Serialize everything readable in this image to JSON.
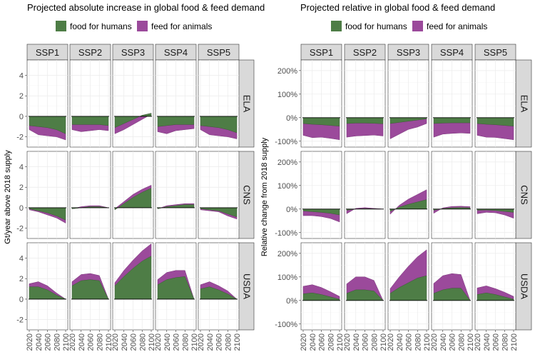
{
  "colors": {
    "food": "#4e7d46",
    "feed": "#9b4a9b"
  },
  "chart_data": [
    {
      "type": "area",
      "title": "Projected absolute increase in global food & feed demand",
      "ylabel": "Gt/year above 2018 supply",
      "columns": [
        "SSP1",
        "SSP2",
        "SSP3",
        "SSP4",
        "SSP5"
      ],
      "rows": [
        "ELA",
        "CNS",
        "USDA"
      ],
      "x": [
        2020,
        2040,
        2060,
        2080,
        2100
      ],
      "x_tick_labels": [
        "2020",
        "2040",
        "2060",
        "2080",
        "2100"
      ],
      "ylim": [
        -3,
        5.5
      ],
      "y_ticks": [
        -2,
        0,
        2,
        4
      ],
      "y_tick_labels": [
        "-2",
        "0",
        "2",
        "4"
      ],
      "legend": [
        "food for humans",
        "feed for animals"
      ],
      "panels": [
        [
          {
            "food": [
              -0.9,
              -1.0,
              -1.1,
              -1.3,
              -1.7
            ],
            "feed": [
              -0.4,
              -0.8,
              -0.8,
              -0.7,
              -0.6
            ]
          },
          {
            "food": [
              -0.8,
              -0.8,
              -0.8,
              -0.8,
              -0.9
            ],
            "feed": [
              -0.5,
              -0.7,
              -0.6,
              -0.5,
              -0.5
            ]
          },
          {
            "food": [
              -1.1,
              -0.7,
              -0.3,
              0.1,
              0.3
            ],
            "feed": [
              -0.6,
              -0.6,
              -0.5,
              -0.4,
              -0.1
            ]
          },
          {
            "food": [
              -1.0,
              -0.9,
              -0.8,
              -0.8,
              -0.8
            ],
            "feed": [
              -0.5,
              -0.8,
              -0.6,
              -0.5,
              -0.4
            ]
          },
          {
            "food": [
              -0.9,
              -1.0,
              -1.1,
              -1.3,
              -1.6
            ],
            "feed": [
              -0.4,
              -0.8,
              -0.8,
              -0.7,
              -0.6
            ]
          }
        ],
        [
          {
            "food": [
              -0.1,
              -0.3,
              -0.5,
              -0.8,
              -1.2
            ],
            "feed": [
              -0.1,
              -0.1,
              -0.2,
              -0.2,
              -0.3
            ]
          },
          {
            "food": [
              -0.1,
              0.0,
              0.1,
              0.1,
              0.0
            ],
            "feed": [
              0.0,
              0.1,
              0.1,
              0.1,
              0.0
            ]
          },
          {
            "food": [
              -0.2,
              0.4,
              1.0,
              1.5,
              1.9
            ],
            "feed": [
              0.1,
              0.2,
              0.3,
              0.3,
              0.3
            ]
          },
          {
            "food": [
              -0.1,
              0.1,
              0.2,
              0.3,
              0.3
            ],
            "feed": [
              0.0,
              0.1,
              0.1,
              0.1,
              0.1
            ]
          },
          {
            "food": [
              -0.1,
              -0.2,
              -0.3,
              -0.6,
              -0.9
            ],
            "feed": [
              -0.1,
              -0.1,
              -0.1,
              -0.2,
              -0.2
            ]
          }
        ],
        [
          {
            "food": [
              1.2,
              1.2,
              0.9,
              0.4,
              0.0
            ],
            "feed": [
              0.3,
              0.5,
              0.4,
              0.2,
              0.0
            ]
          },
          {
            "food": [
              1.3,
              1.8,
              1.9,
              1.8,
              0.0
            ],
            "feed": [
              0.4,
              0.6,
              0.6,
              0.5,
              0.0
            ]
          },
          {
            "food": [
              1.3,
              2.2,
              3.0,
              3.7,
              4.2
            ],
            "feed": [
              0.3,
              0.6,
              0.8,
              1.0,
              1.2
            ]
          },
          {
            "food": [
              1.4,
              1.9,
              2.1,
              2.2,
              0.0
            ],
            "feed": [
              0.5,
              0.7,
              0.7,
              0.6,
              0.0
            ]
          },
          {
            "food": [
              1.0,
              1.2,
              0.9,
              0.5,
              0.0
            ],
            "feed": [
              0.4,
              0.5,
              0.4,
              0.3,
              0.0
            ]
          }
        ]
      ]
    },
    {
      "type": "area",
      "title": "Projected relative in global food & feed demand",
      "ylabel": "Relative change from 2018 supply",
      "columns": [
        "SSP1",
        "SSP2",
        "SSP3",
        "SSP4",
        "SSP5"
      ],
      "rows": [
        "ELA",
        "CNS",
        "USDA"
      ],
      "x": [
        2020,
        2040,
        2060,
        2080,
        2100
      ],
      "x_tick_labels": [
        "2020",
        "2040",
        "2060",
        "2080",
        "2100"
      ],
      "ylim": [
        -125,
        245
      ],
      "y_ticks": [
        -100,
        0,
        100,
        200
      ],
      "y_tick_labels": [
        "-100%",
        "0%",
        "100%",
        "200%"
      ],
      "y_ticks_full": [
        -100,
        0,
        100,
        200
      ],
      "legend": [
        "food for humans",
        "feed for animals"
      ],
      "panels": [
        [
          {
            "food": [
              -25,
              -28,
              -30,
              -33,
              -36
            ],
            "feed": [
              -50,
              -57,
              -53,
              -55,
              -58
            ]
          },
          {
            "food": [
              -25,
              -23,
              -23,
              -24,
              -26
            ],
            "feed": [
              -58,
              -55,
              -53,
              -50,
              -52
            ]
          },
          {
            "food": [
              -25,
              -20,
              -15,
              -10,
              -5
            ],
            "feed": [
              -65,
              -50,
              -35,
              -30,
              -20
            ]
          },
          {
            "food": [
              -25,
              -23,
              -22,
              -22,
              -22
            ],
            "feed": [
              -58,
              -47,
              -45,
              -43,
              -45
            ]
          },
          {
            "food": [
              -25,
              -28,
              -30,
              -33,
              -36
            ],
            "feed": [
              -50,
              -55,
              -54,
              -56,
              -58
            ]
          }
        ],
        [
          {
            "food": [
              -8,
              -11,
              -14,
              -18,
              -25
            ],
            "feed": [
              -20,
              -17,
              -18,
              -22,
              -30
            ]
          },
          {
            "food": [
              -5,
              0,
              2,
              1,
              0
            ],
            "feed": [
              -15,
              3,
              4,
              2,
              0
            ]
          },
          {
            "food": [
              -10,
              8,
              20,
              30,
              40
            ],
            "feed": [
              -12,
              8,
              22,
              32,
              42
            ]
          },
          {
            "food": [
              -5,
              2,
              5,
              6,
              5
            ],
            "feed": [
              -13,
              3,
              6,
              6,
              5
            ]
          },
          {
            "food": [
              -5,
              -4,
              -6,
              -10,
              -14
            ],
            "feed": [
              -15,
              -10,
              -10,
              -15,
              -25
            ]
          }
        ],
        [
          {
            "food": [
              28,
              32,
              25,
              15,
              5
            ],
            "feed": [
              32,
              35,
              30,
              22,
              12
            ]
          },
          {
            "food": [
              30,
              45,
              45,
              40,
              0
            ],
            "feed": [
              40,
              55,
              55,
              45,
              0
            ]
          },
          {
            "food": [
              30,
              55,
              75,
              95,
              105
            ],
            "feed": [
              20,
              45,
              70,
              90,
              110
            ]
          },
          {
            "food": [
              30,
              45,
              52,
              52,
              0
            ],
            "feed": [
              42,
              60,
              62,
              58,
              0
            ]
          },
          {
            "food": [
              25,
              32,
              25,
              15,
              5
            ],
            "feed": [
              28,
              30,
              25,
              20,
              12
            ]
          }
        ]
      ]
    }
  ]
}
